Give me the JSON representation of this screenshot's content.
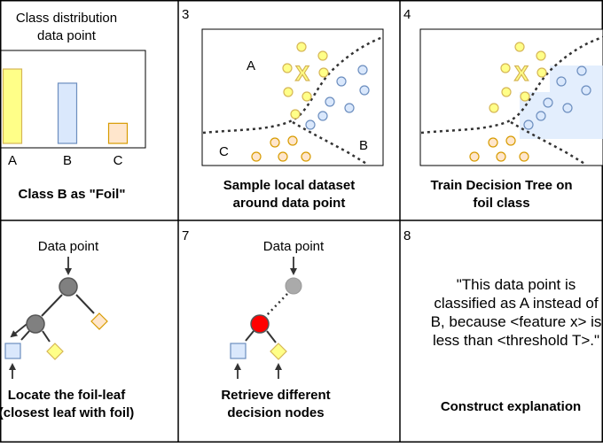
{
  "panels": {
    "p1": {
      "title_line1": "Class distribution",
      "title_line2": "data point",
      "chart_data": {
        "type": "bar",
        "categories": [
          "A",
          "B",
          "C"
        ],
        "values": [
          1.0,
          0.81,
          0.27
        ],
        "colors": [
          "#ffff88",
          "#dae8fc",
          "#ffe6cc"
        ],
        "borders": [
          "#d6b656",
          "#6c8ebf",
          "#d79b00"
        ]
      },
      "caption": "Class B as \"Foil\""
    },
    "p3": {
      "number": "3",
      "region_labels": [
        "A",
        "B",
        "C"
      ],
      "marker": "X",
      "caption_line1": "Sample local dataset",
      "caption_line2": "around data point"
    },
    "p4": {
      "number": "4",
      "marker": "X",
      "caption_line1": "Train Decision Tree on",
      "caption_line2": "foil class"
    },
    "p5": {
      "node_label": "Data point",
      "caption_line1": "Locate the foil-leaf",
      "caption_line2": "(closest leaf with foil)"
    },
    "p7": {
      "number": "7",
      "node_label": "Data point",
      "caption_line1": "Retrieve different",
      "caption_line2": "decision nodes"
    },
    "p8": {
      "number": "8",
      "quote_line1": "\"This data point is",
      "quote_line2": "classified as A instead of",
      "quote_line3": "B, because <feature x> is",
      "quote_line4": "less than <threshold T>.\"",
      "caption": "Construct explanation"
    }
  },
  "colors": {
    "class_a_fill": "#ffff88",
    "class_a_stroke": "#d6b656",
    "class_b_fill": "#dae8fc",
    "class_b_stroke": "#6c8ebf",
    "class_c_fill": "#ffe6cc",
    "class_c_stroke": "#d79b00",
    "node_gray": "#808080",
    "node_red": "#ff0000",
    "foil_region": "#dae8fc"
  }
}
